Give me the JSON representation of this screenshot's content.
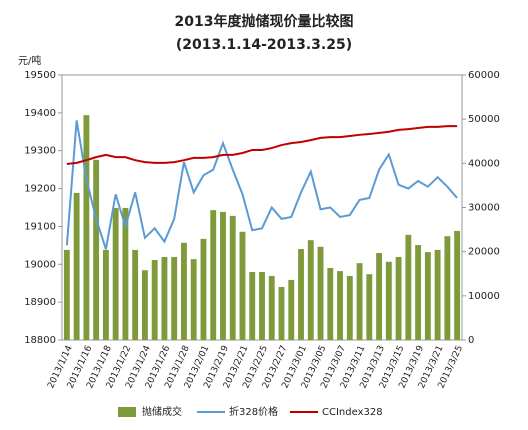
{
  "chart_data": {
    "type": "bar-line",
    "title": "2013年度抛储现价量比较图",
    "subtitle": "(2013.1.14-2013.3.25)",
    "y_label": "元/吨",
    "categories": [
      "2013/1/14",
      null,
      "2013/1/16",
      null,
      "2013/1/18",
      null,
      "2013/1/22",
      null,
      "2013/1/24",
      null,
      "2013/1/26",
      null,
      "2013/1/28",
      null,
      "2013/2/01",
      null,
      "2013/2/19",
      null,
      "2013/2/21",
      null,
      "2013/2/25",
      null,
      "2013/2/27",
      null,
      "2013/3/01",
      null,
      "2013/3/05",
      null,
      "2013/3/07",
      null,
      "2013/3/11",
      null,
      "2013/3/13",
      null,
      "2013/3/15",
      null,
      "2013/3/19",
      null,
      "2013/3/21",
      null,
      "2013/3/25"
    ],
    "series": [
      {
        "name": "抛储成交",
        "type": "bar",
        "axis": "y2",
        "color": "#7f9a3a",
        "values": [
          20400,
          33300,
          50900,
          40800,
          20400,
          29900,
          29900,
          20400,
          15800,
          18100,
          18800,
          18800,
          22000,
          18300,
          22900,
          29400,
          29000,
          28100,
          24500,
          15400,
          15400,
          14500,
          12000,
          13600,
          20600,
          22600,
          21100,
          16300,
          15600,
          14500,
          17400,
          14900,
          19700,
          17700,
          18800,
          23800,
          21500,
          19900,
          20400,
          23500,
          24700
        ]
      },
      {
        "name": "折328价格",
        "type": "line",
        "color": "#5b9bd5",
        "values": [
          19050,
          19380,
          19225,
          19120,
          19040,
          19185,
          19100,
          19190,
          19070,
          19095,
          19060,
          19120,
          19270,
          19190,
          19235,
          19250,
          19320,
          19250,
          19185,
          19090,
          19095,
          19150,
          19120,
          19125,
          19190,
          19245,
          19145,
          19150,
          19125,
          19130,
          19170,
          19175,
          19250,
          19290,
          19210,
          19200,
          19220,
          19205,
          19230,
          19205,
          19175
        ]
      },
      {
        "name": "CCIndex328",
        "type": "line",
        "color": "#c00000",
        "values": [
          19265,
          19268,
          19275,
          19283,
          19289,
          19283,
          19283,
          19275,
          19270,
          19268,
          19268,
          19270,
          19275,
          19281,
          19281,
          19283,
          19289,
          19289,
          19294,
          19302,
          19302,
          19307,
          19315,
          19320,
          19323,
          19328,
          19334,
          19336,
          19336,
          19339,
          19342,
          19344,
          19347,
          19350,
          19355,
          19357,
          19360,
          19363,
          19363,
          19365,
          19365
        ]
      }
    ],
    "ylim": [
      18800,
      19500
    ],
    "yticks": [
      18800,
      18900,
      19000,
      19100,
      19200,
      19300,
      19400,
      19500
    ],
    "y2lim": [
      0,
      60000
    ],
    "y2ticks": [
      0,
      10000,
      20000,
      30000,
      40000,
      50000,
      60000
    ],
    "legend": "bottom"
  }
}
